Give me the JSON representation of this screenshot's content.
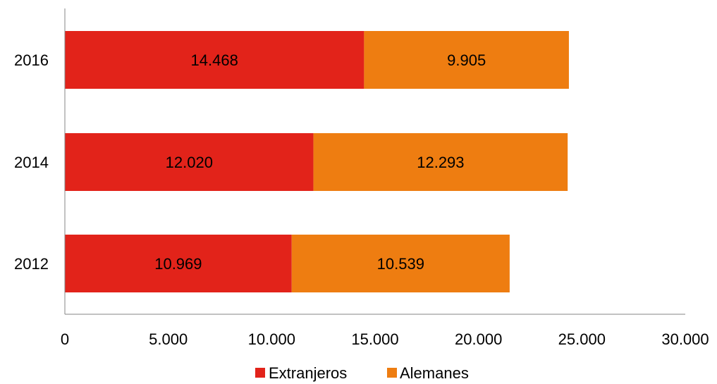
{
  "chart_data": {
    "type": "bar",
    "orientation": "horizontal",
    "stacked": true,
    "categories": [
      "2016",
      "2014",
      "2012"
    ],
    "series": [
      {
        "name": "Extranjeros",
        "color": "#e2231a",
        "values": [
          14468,
          12020,
          10969
        ],
        "labels": [
          "14.468",
          "12.020",
          "10.969"
        ]
      },
      {
        "name": "Alemanes",
        "color": "#ee7d11",
        "values": [
          9905,
          12293,
          10539
        ],
        "labels": [
          "9.905",
          "12.293",
          "10.539"
        ]
      }
    ],
    "xlim": [
      0,
      30000
    ],
    "xticks": [
      0,
      5000,
      10000,
      15000,
      20000,
      25000,
      30000
    ],
    "xtick_labels": [
      "0",
      "5.000",
      "10.000",
      "15.000",
      "20.000",
      "25.000",
      "30.000"
    ],
    "grid": false,
    "legend_position": "bottom"
  }
}
